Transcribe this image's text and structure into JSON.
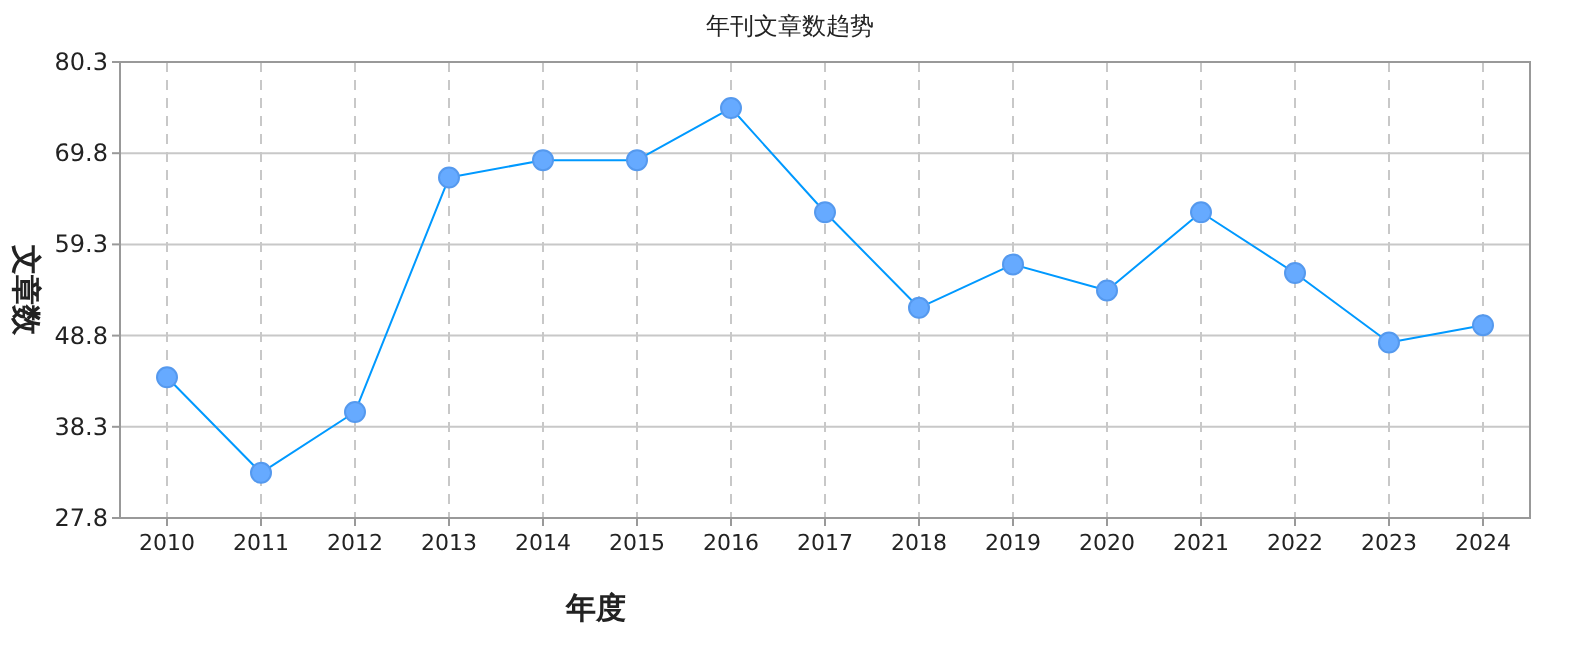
{
  "chart_data": {
    "type": "line",
    "title": "年刊文章数趋势",
    "xlabel": "年度",
    "ylabel": "文章数",
    "categories": [
      "2010",
      "2011",
      "2012",
      "2013",
      "2014",
      "2015",
      "2016",
      "2017",
      "2018",
      "2019",
      "2020",
      "2021",
      "2022",
      "2023",
      "2024"
    ],
    "series": [
      {
        "color": "#0099ff",
        "values": [
          44,
          33,
          40,
          67,
          69,
          69,
          75,
          63,
          52,
          57,
          54,
          63,
          56,
          48,
          50
        ]
      }
    ],
    "ylim": [
      27.8,
      80.3
    ],
    "yticks": [
      27.8,
      38.3,
      48.8,
      59.3,
      69.8,
      80.3
    ],
    "grid": true,
    "marker": "circle",
    "line_style": "solid"
  }
}
